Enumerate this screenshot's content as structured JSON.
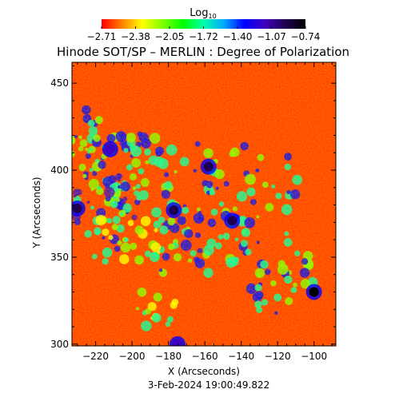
{
  "chart_data": {
    "type": "heatmap",
    "title": "Hinode SOT/SP – MERLIN : Degree of Polarization",
    "xlabel": "X (Arcseconds)",
    "ylabel": "Y (Arcseconds)",
    "xlim": [
      -233,
      -88
    ],
    "ylim": [
      299,
      462
    ],
    "xticks": [
      -220,
      -200,
      -180,
      -160,
      -140,
      -120,
      -100
    ],
    "yticks": [
      300,
      350,
      400,
      450
    ],
    "colorbar": {
      "label_base": "Log",
      "label_sub": "10",
      "ticks": [
        "−2.71",
        "−2.38",
        "−2.05",
        "−1.72",
        "−1.40",
        "−1.07",
        "−0.74"
      ],
      "range": [
        -2.71,
        -0.74
      ],
      "colors": [
        "#ff0000",
        "#ff7f00",
        "#ffff00",
        "#7fff00",
        "#00ff00",
        "#00ffaa",
        "#00aaff",
        "#0000ff",
        "#4000c0",
        "#200050",
        "#000000"
      ]
    },
    "features": [
      {
        "x": -100,
        "y": 330,
        "value": -0.74
      },
      {
        "x": -177,
        "y": 377,
        "value": -0.9
      },
      {
        "x": -230,
        "y": 378,
        "value": -0.9
      },
      {
        "x": -145,
        "y": 371,
        "value": -1.0
      },
      {
        "x": -158,
        "y": 402,
        "value": -1.0
      },
      {
        "x": -212,
        "y": 412,
        "value": -1.1
      },
      {
        "x": -175,
        "y": 300,
        "value": -1.1
      }
    ],
    "timestamp": "3-Feb-2024 19:00:49.822"
  }
}
